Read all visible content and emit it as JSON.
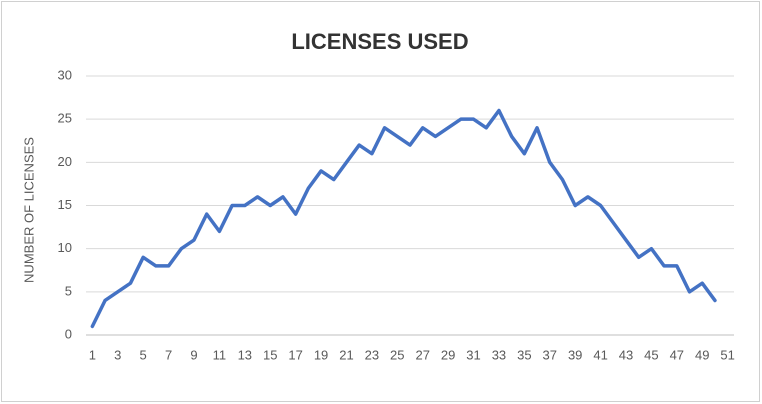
{
  "chart_data": {
    "type": "line",
    "title": "LICENSES USED",
    "y_label": "NUMBER OF LICENSES",
    "x": [
      1,
      2,
      3,
      4,
      5,
      6,
      7,
      8,
      9,
      10,
      11,
      12,
      13,
      14,
      15,
      16,
      17,
      18,
      19,
      20,
      21,
      22,
      23,
      24,
      25,
      26,
      27,
      28,
      29,
      30,
      31,
      32,
      33,
      34,
      35,
      36,
      37,
      38,
      39,
      40,
      41,
      42,
      43,
      44,
      45,
      46,
      47,
      48,
      49,
      50
    ],
    "series": [
      {
        "name": "Licenses",
        "color": "#4472c4",
        "values": [
          1,
          4,
          5,
          6,
          9,
          8,
          8,
          10,
          11,
          14,
          12,
          15,
          15,
          16,
          15,
          16,
          14,
          17,
          19,
          18,
          20,
          22,
          21,
          24,
          23,
          22,
          24,
          23,
          24,
          25,
          25,
          24,
          26,
          23,
          21,
          24,
          20,
          18,
          15,
          16,
          15,
          13,
          11,
          9,
          10,
          8,
          8,
          5,
          6,
          4
        ]
      }
    ],
    "xlim": [
      0.5,
      51.5
    ],
    "xticks": [
      1,
      3,
      5,
      7,
      9,
      11,
      13,
      15,
      17,
      19,
      21,
      23,
      25,
      27,
      29,
      31,
      33,
      35,
      37,
      39,
      41,
      43,
      45,
      47,
      49,
      51
    ],
    "ylim": [
      0,
      30
    ],
    "yticks": [
      0,
      5,
      10,
      15,
      20,
      25,
      30
    ],
    "grid": true
  }
}
